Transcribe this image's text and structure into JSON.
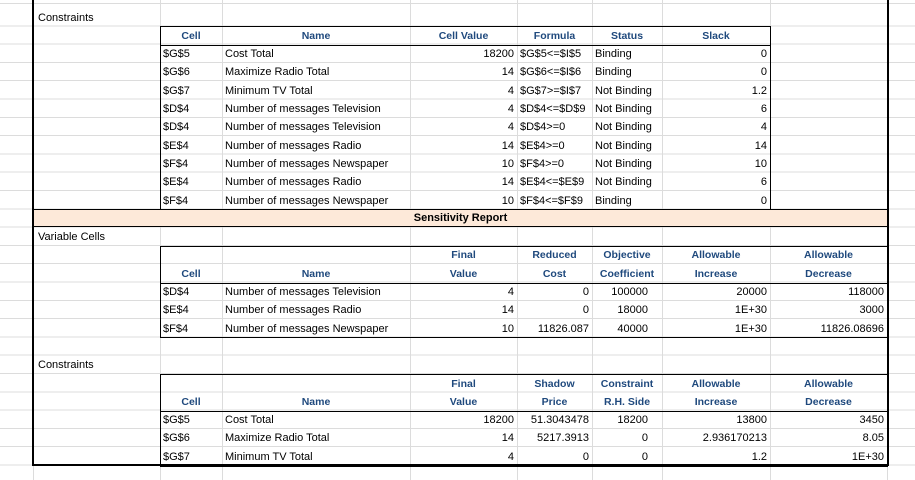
{
  "banner": "Sensitivity Report",
  "sections": [
    {
      "title": "Constraints",
      "headers": [
        [
          "Cell"
        ],
        [
          "Name"
        ],
        [
          "Cell Value"
        ],
        [
          "Formula"
        ],
        [
          "Status"
        ],
        [
          "Slack"
        ]
      ],
      "rows": [
        [
          "$G$5",
          "Cost Total",
          18200,
          "$G$5<=$I$5",
          "Binding",
          0
        ],
        [
          "$G$6",
          "Maximize Radio Total",
          14,
          "$G$6<=$I$6",
          "Binding",
          0
        ],
        [
          "$G$7",
          "Minimum TV Total",
          4,
          "$G$7>=$I$7",
          "Not Binding",
          1.2
        ],
        [
          "$D$4",
          "Number of messages Television",
          4,
          "$D$4<=$D$9",
          "Not Binding",
          6
        ],
        [
          "$D$4",
          "Number of messages Television",
          4,
          "$D$4>=0",
          "Not Binding",
          4
        ],
        [
          "$E$4",
          "Number of messages Radio",
          14,
          "$E$4>=0",
          "Not Binding",
          14
        ],
        [
          "$F$4",
          "Number of messages Newspaper",
          10,
          "$F$4>=0",
          "Not Binding",
          10
        ],
        [
          "$E$4",
          "Number of messages Radio",
          14,
          "$E$4<=$E$9",
          "Not Binding",
          6
        ],
        [
          "$F$4",
          "Number of messages Newspaper",
          10,
          "$F$4<=$F$9",
          "Binding",
          0
        ]
      ]
    },
    {
      "title": "Variable Cells",
      "headers": [
        [
          "Cell"
        ],
        [
          "Name"
        ],
        [
          "Final",
          "Value"
        ],
        [
          "Reduced",
          "Cost"
        ],
        [
          "Objective",
          "Coefficient"
        ],
        [
          "Allowable",
          "Increase"
        ],
        [
          "Allowable",
          "Decrease"
        ]
      ],
      "rows": [
        [
          "$D$4",
          "Number of messages Television",
          4,
          0,
          100000,
          20000,
          118000
        ],
        [
          "$E$4",
          "Number of messages Radio",
          14,
          0,
          18000,
          "1E+30",
          3000
        ],
        [
          "$F$4",
          "Number of messages Newspaper",
          10,
          11826.087,
          40000,
          "1E+30",
          11826.08696
        ]
      ]
    },
    {
      "title": "Constraints",
      "headers": [
        [
          "Cell"
        ],
        [
          "Name"
        ],
        [
          "Final",
          "Value"
        ],
        [
          "Shadow",
          "Price"
        ],
        [
          "Constraint",
          "R.H. Side"
        ],
        [
          "Allowable",
          "Increase"
        ],
        [
          "Allowable",
          "Decrease"
        ]
      ],
      "rows": [
        [
          "$G$5",
          "Cost Total",
          18200,
          51.3043478,
          18200,
          13800,
          3450
        ],
        [
          "$G$6",
          "Maximize Radio Total",
          14,
          5217.3913,
          0,
          2.936170213,
          8.05
        ],
        [
          "$G$7",
          "Minimum TV Total",
          4,
          0,
          0,
          1.2,
          "1E+30"
        ]
      ]
    }
  ]
}
